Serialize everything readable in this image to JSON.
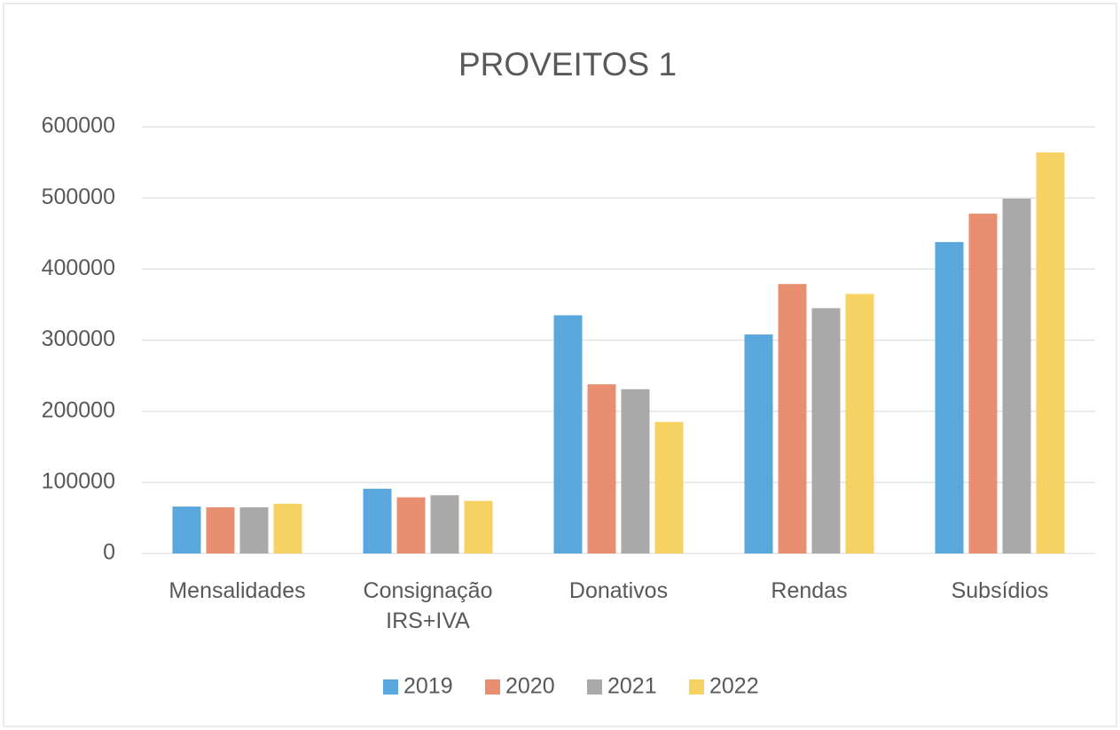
{
  "chart_data": {
    "type": "bar",
    "title": "PROVEITOS 1",
    "categories": [
      "Mensalidades",
      "Consignação IRS+IVA",
      "Donativos",
      "Rendas",
      "Subsídios"
    ],
    "series": [
      {
        "name": "2019",
        "color": "#5aa7de",
        "values": [
          66000,
          91000,
          335000,
          308000,
          438000
        ]
      },
      {
        "name": "2020",
        "color": "#e88f72",
        "values": [
          65000,
          79000,
          238000,
          379000,
          478000
        ]
      },
      {
        "name": "2021",
        "color": "#a9a9a9",
        "values": [
          65000,
          82000,
          231000,
          345000,
          499000
        ]
      },
      {
        "name": "2022",
        "color": "#f5d262",
        "values": [
          70000,
          74000,
          185000,
          365000,
          564000
        ]
      }
    ],
    "ylim": [
      0,
      600000
    ],
    "yticks": [
      0,
      100000,
      200000,
      300000,
      400000,
      500000,
      600000
    ],
    "grid": true,
    "legend": "bottom"
  }
}
